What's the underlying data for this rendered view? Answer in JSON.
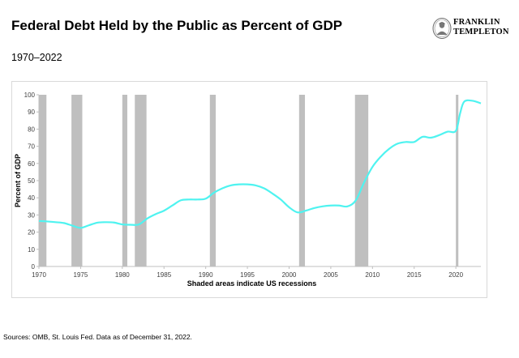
{
  "header": {
    "title": "Federal Debt Held by the Public as Percent of GDP",
    "subtitle": "1970–2022"
  },
  "logo": {
    "line1": "FRANKLIN",
    "line2": "TEMPLETON",
    "icon": "franklin-portrait-icon"
  },
  "footer": {
    "source": "Sources: OMB, St. Louis Fed. Data as of December 31, 2022."
  },
  "colors": {
    "line": "#4ff3f0",
    "recession": "#bfbfbf",
    "axis": "#bfbfbf"
  },
  "chart_data": {
    "type": "line",
    "title": "Federal Debt Held by the Public as Percent of GDP",
    "xlabel": "Shaded areas indicate US recessions",
    "ylabel": "Percent of GDP",
    "xlim": [
      1970,
      2023
    ],
    "ylim": [
      0,
      100
    ],
    "xticks": [
      1970,
      1975,
      1980,
      1985,
      1990,
      1995,
      2000,
      2005,
      2010,
      2015,
      2020
    ],
    "yticks": [
      0,
      10,
      20,
      30,
      40,
      50,
      60,
      70,
      80,
      90,
      100
    ],
    "grid": false,
    "series": [
      {
        "name": "Federal Debt Held by the Public (% of GDP)",
        "x": [
          1970,
          1971,
          1972,
          1973,
          1974,
          1975,
          1976,
          1977,
          1978,
          1979,
          1980,
          1981,
          1982,
          1983,
          1984,
          1985,
          1986,
          1987,
          1988,
          1989,
          1990,
          1991,
          1992,
          1993,
          1994,
          1995,
          1996,
          1997,
          1998,
          1999,
          2000,
          2001,
          2002,
          2003,
          2004,
          2005,
          2006,
          2007,
          2008,
          2009,
          2010,
          2011,
          2012,
          2013,
          2014,
          2015,
          2016,
          2017,
          2018,
          2019,
          2020,
          2020.5,
          2021,
          2022,
          2023
        ],
        "values": [
          26.5,
          26.2,
          25.8,
          25.3,
          23.8,
          22.5,
          24.0,
          25.5,
          25.8,
          25.6,
          24.5,
          24.3,
          24.5,
          28.0,
          30.5,
          32.5,
          35.5,
          38.5,
          39.0,
          39.0,
          39.5,
          43.0,
          45.5,
          47.2,
          47.8,
          47.8,
          47.2,
          45.5,
          42.5,
          39.0,
          34.5,
          31.5,
          32.5,
          34.0,
          35.0,
          35.5,
          35.5,
          35.0,
          38.5,
          49.0,
          58.0,
          64.0,
          68.5,
          71.5,
          72.5,
          72.5,
          75.5,
          75.0,
          76.5,
          78.5,
          79.0,
          89.0,
          96.0,
          96.5,
          95.0
        ]
      }
    ],
    "recessions": [
      {
        "start": 1970.0,
        "end": 1970.9
      },
      {
        "start": 1973.9,
        "end": 1975.2
      },
      {
        "start": 1980.0,
        "end": 1980.6
      },
      {
        "start": 1981.5,
        "end": 1982.9
      },
      {
        "start": 1990.5,
        "end": 1991.2
      },
      {
        "start": 2001.2,
        "end": 2001.9
      },
      {
        "start": 2007.9,
        "end": 2009.5
      },
      {
        "start": 2020.0,
        "end": 2020.3
      }
    ]
  }
}
